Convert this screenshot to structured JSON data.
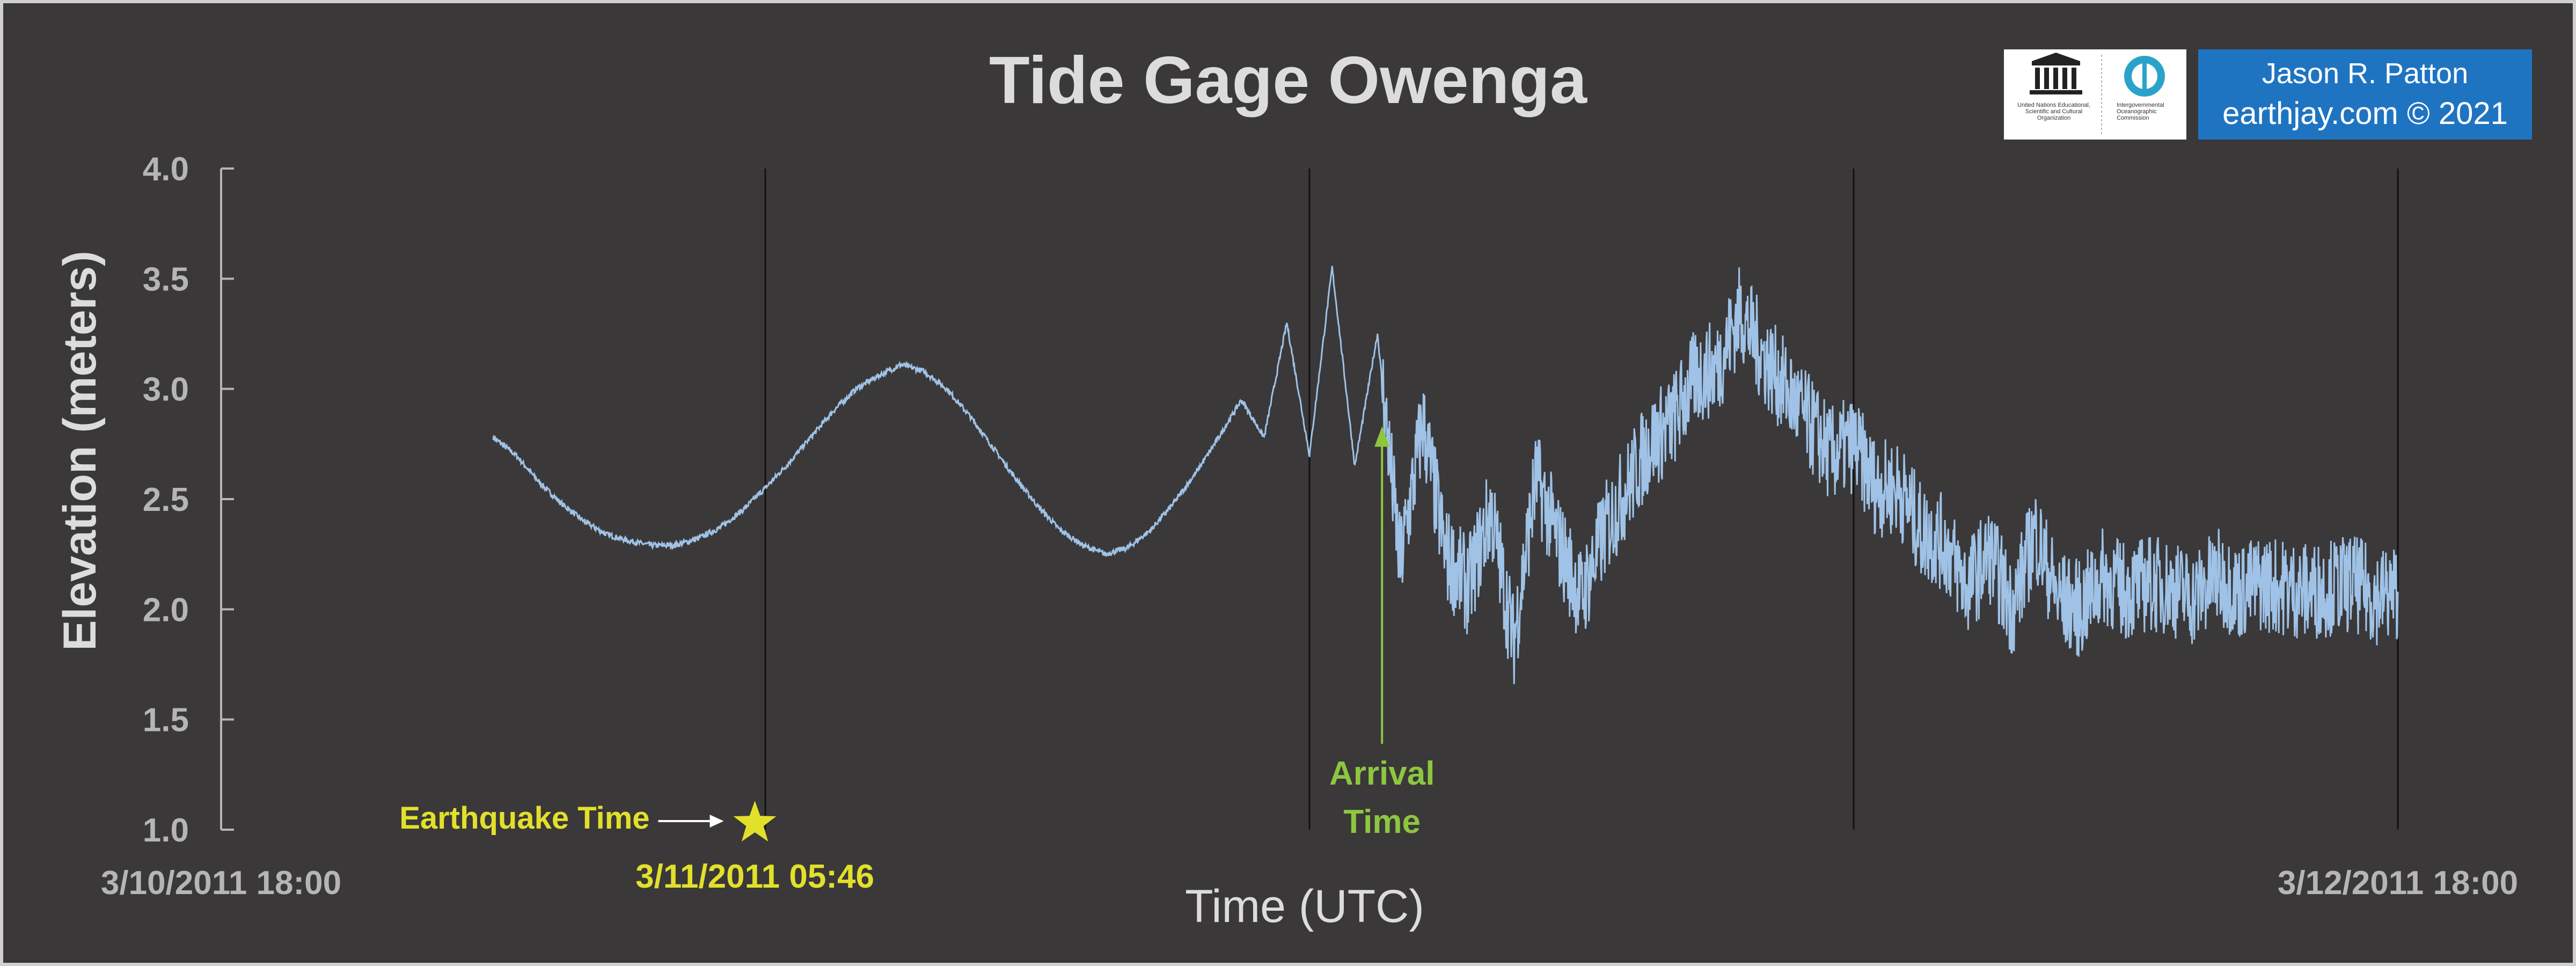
{
  "chart_data": {
    "type": "line",
    "title": "Tide Gage Owenga",
    "xlabel": "Time (UTC)",
    "ylabel": "Elevation (meters)",
    "ylim": [
      1.0,
      4.0
    ],
    "yticks": [
      "1.0",
      "1.5",
      "2.0",
      "2.5",
      "3.0",
      "3.5",
      "4.0"
    ],
    "x_start_label": "3/10/2011 18:00",
    "x_end_label": "3/12/2011 18:00",
    "x_range_hours": [
      0,
      48
    ],
    "vertical_gridlines_hours": [
      12,
      24,
      36,
      48
    ],
    "series_color": "#9fc2e6",
    "series": [
      {
        "values_x_hours": [
          6.0,
          6.5,
          7.0,
          7.5,
          8.0,
          8.5,
          9.0,
          9.5,
          10.0,
          10.5,
          11.0,
          11.5,
          12.0,
          12.5,
          13.0,
          13.5,
          14.0,
          14.5,
          15.0,
          15.5,
          16.0,
          16.5,
          17.0,
          17.5,
          18.0,
          18.5,
          19.0,
          19.5,
          20.0,
          20.5,
          21.0,
          21.5,
          22.0,
          22.5,
          23.0,
          23.5,
          24.0,
          24.5,
          25.0,
          25.5,
          26.0,
          26.5,
          27.0,
          27.5,
          28.0,
          28.5,
          29.0,
          29.5,
          30.0,
          30.5,
          31.0,
          31.5,
          32.0,
          32.5,
          33.0,
          33.5,
          34.0,
          34.5,
          35.0,
          35.5,
          36.0,
          36.5,
          37.0,
          37.5,
          38.0,
          38.5,
          39.0,
          39.5,
          40.0,
          40.5,
          41.0,
          41.5,
          42.0,
          42.5,
          43.0,
          43.5,
          44.0,
          44.5,
          45.0,
          45.5,
          46.0,
          46.5,
          47.0,
          47.5,
          48.0
        ],
        "values_y": [
          2.78,
          2.7,
          2.58,
          2.48,
          2.4,
          2.34,
          2.31,
          2.29,
          2.29,
          2.32,
          2.37,
          2.45,
          2.55,
          2.66,
          2.78,
          2.9,
          3.0,
          3.06,
          3.11,
          3.08,
          3.0,
          2.88,
          2.74,
          2.6,
          2.47,
          2.36,
          2.29,
          2.25,
          2.28,
          2.36,
          2.48,
          2.62,
          2.78,
          2.95,
          2.78,
          3.3,
          2.7,
          3.55,
          2.65,
          3.25,
          2.2,
          2.85,
          2.25,
          2.1,
          2.45,
          1.85,
          2.6,
          2.3,
          2.05,
          2.35,
          2.55,
          2.75,
          2.85,
          3.05,
          3.1,
          3.35,
          3.15,
          3.0,
          2.85,
          2.7,
          2.75,
          2.55,
          2.55,
          2.35,
          2.3,
          2.1,
          2.25,
          2.0,
          2.35,
          2.05,
          2.0,
          2.15,
          2.08,
          2.12,
          2.1,
          2.05,
          2.15,
          2.08,
          2.12,
          2.1,
          2.08,
          2.1,
          2.12,
          2.06,
          2.08
        ]
      }
    ],
    "annotations": {
      "earthquake_label": "Earthquake Time",
      "earthquake_time_label": "3/11/2011 05:46",
      "earthquake_hour": 11.77,
      "earthquake_color": "#e2e02a",
      "arrival_label_line1": "Arrival",
      "arrival_label_line2": "Time",
      "arrival_hour": 25.6,
      "arrival_elevation": 2.83,
      "arrival_color": "#8dc63f"
    }
  },
  "credit": {
    "name": "Jason R. Patton",
    "site": "earthjay.com © 2021"
  },
  "logos": {
    "unesco_text": "United Nations Educational, Scientific and Cultural Organization",
    "ioc_text": "Intergovernmental Oceanographic Commission"
  }
}
